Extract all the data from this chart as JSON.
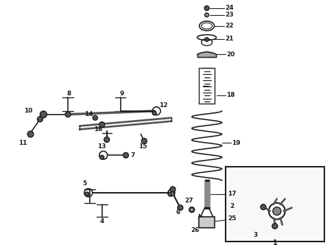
{
  "bg_color": "#ffffff",
  "lc": "#1a1a1a",
  "fig_width": 4.9,
  "fig_height": 3.6,
  "dpi": 100
}
